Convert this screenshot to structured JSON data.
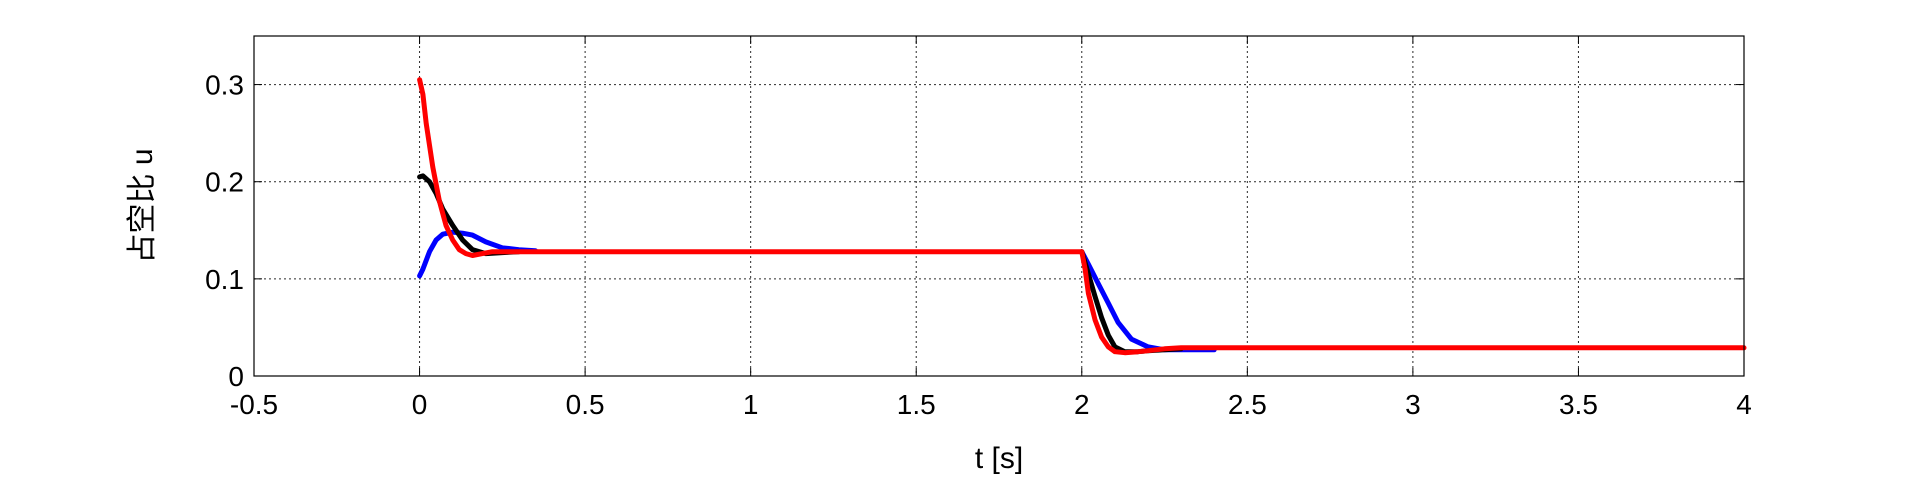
{
  "chart_data": {
    "type": "line",
    "title": "",
    "xlabel": "t [s]",
    "ylabel": "占空比 u",
    "xlim": [
      -0.5,
      4
    ],
    "ylim": [
      0,
      0.35
    ],
    "xticks": [
      -0.5,
      0,
      0.5,
      1,
      1.5,
      2,
      2.5,
      3,
      3.5,
      4
    ],
    "xtick_labels": [
      "-0.5",
      "0",
      "0.5",
      "1",
      "1.5",
      "2",
      "2.5",
      "3",
      "3.5",
      "4"
    ],
    "yticks": [
      0,
      0.1,
      0.2,
      0.3
    ],
    "ytick_labels": [
      "0",
      "0.1",
      "0.2",
      "0.3"
    ],
    "grid": true,
    "legend": "none",
    "series": [
      {
        "color": "#0000ff",
        "x": [
          0,
          0.01,
          0.03,
          0.05,
          0.07,
          0.1,
          0.13,
          0.16,
          0.2,
          0.25,
          0.3,
          0.35,
          null,
          2,
          2.02,
          2.05,
          2.08,
          2.11,
          2.15,
          2.2,
          2.25,
          2.3,
          2.4
        ],
        "y": [
          0.103,
          0.11,
          0.128,
          0.14,
          0.146,
          0.148,
          0.147,
          0.145,
          0.138,
          0.132,
          0.13,
          0.129,
          null,
          0.128,
          0.115,
          0.095,
          0.075,
          0.055,
          0.038,
          0.03,
          0.027,
          0.027,
          0.027
        ]
      },
      {
        "color": "#000000",
        "x": [
          0,
          0.01,
          0.03,
          0.05,
          0.07,
          0.1,
          0.13,
          0.16,
          0.2,
          0.25,
          0.3,
          null,
          2,
          2.02,
          2.04,
          2.06,
          2.08,
          2.1,
          2.13,
          2.17,
          2.2,
          2.25,
          2.3
        ],
        "y": [
          0.205,
          0.206,
          0.2,
          0.188,
          0.172,
          0.155,
          0.14,
          0.13,
          0.126,
          0.127,
          0.128,
          null,
          0.128,
          0.105,
          0.082,
          0.06,
          0.042,
          0.03,
          0.025,
          0.025,
          0.026,
          0.027,
          0.028
        ]
      },
      {
        "color": "#ff0000",
        "x": [
          0,
          0.01,
          0.02,
          0.04,
          0.06,
          0.08,
          0.1,
          0.12,
          0.14,
          0.16,
          0.19,
          0.22,
          0.26,
          0.3,
          1.0,
          1.5,
          2,
          2.01,
          2.02,
          2.04,
          2.06,
          2.08,
          2.1,
          2.13,
          2.17,
          2.2,
          2.25,
          2.3,
          2.5,
          3,
          3.5,
          4
        ],
        "y": [
          0.305,
          0.29,
          0.26,
          0.215,
          0.18,
          0.155,
          0.14,
          0.13,
          0.126,
          0.124,
          0.126,
          0.128,
          0.128,
          0.128,
          0.128,
          0.128,
          0.128,
          0.11,
          0.085,
          0.058,
          0.04,
          0.03,
          0.025,
          0.024,
          0.025,
          0.026,
          0.028,
          0.029,
          0.029,
          0.029,
          0.029,
          0.029
        ]
      }
    ]
  }
}
